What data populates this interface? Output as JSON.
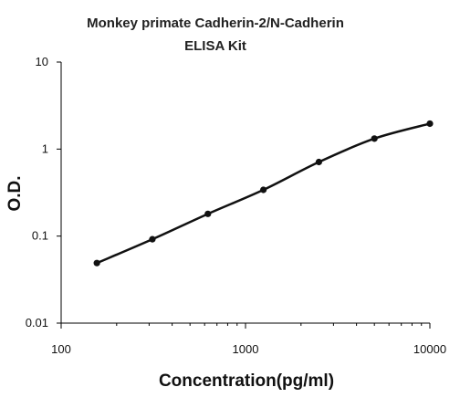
{
  "chart_data": {
    "type": "line",
    "title_lines": [
      "Monkey primate Cadherin-2/N-Cadherin",
      "ELISA Kit"
    ],
    "xlabel": "Concentration(pg/ml)",
    "ylabel": "O.D.",
    "x_scale": "log",
    "y_scale": "log",
    "xlim": [
      100,
      10000
    ],
    "ylim": [
      0.01,
      10
    ],
    "x_ticks": [
      "100",
      "1000",
      "10000"
    ],
    "y_ticks": [
      "0.01",
      "0.1",
      "1",
      "10"
    ],
    "grid": false,
    "legend": "none",
    "series": [
      {
        "x": [
          156.25,
          312.5,
          625,
          1250,
          2500,
          5000,
          10000
        ],
        "y": [
          0.049,
          0.092,
          0.18,
          0.34,
          0.71,
          1.32,
          1.96
        ]
      }
    ],
    "colors": {
      "line": "#111111",
      "marker": "#111111",
      "axis": "#000000"
    }
  }
}
